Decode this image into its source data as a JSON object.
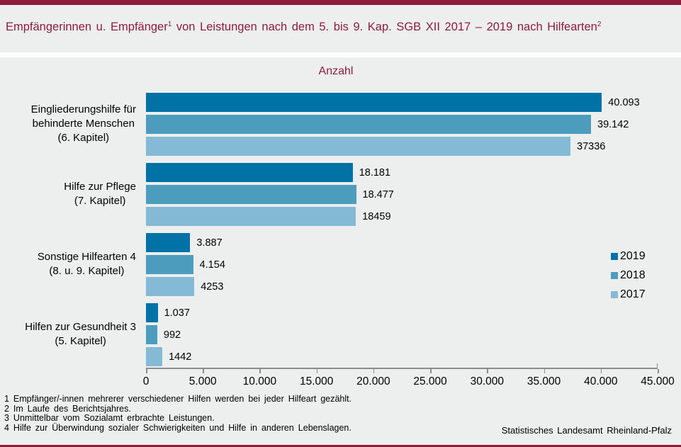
{
  "header": {
    "title_part1": "Empfängerinnen u. Empfänger",
    "title_sup1": "1",
    "title_part2": " von Leistungen nach dem 5. bis 9. Kap. SGB XII 2017 – 2019 nach Hilfearten",
    "title_sup2": "2"
  },
  "colors": {
    "accent_red": "#8C1C3C",
    "page_bg": "#EDEFEE",
    "axis_grey": "#8C8C8C",
    "bar_2019": "#0072A5",
    "bar_2018": "#4C9CBD",
    "bar_2017": "#84BAD6"
  },
  "chart_data": {
    "type": "bar",
    "orientation": "horizontal",
    "axis_title": "Anzahl",
    "categories": [
      {
        "name": "Eingliederungshilfe für behinderte Menschen (6. Kapitel)",
        "lines": [
          "Eingliederungshilfe für",
          "behinderte Menschen",
          "(6. Kapitel)"
        ]
      },
      {
        "name": "Hilfe zur Pflege (7. Kapitel)",
        "lines": [
          "Hilfe zur Pflege",
          "(7. Kapitel)"
        ]
      },
      {
        "name": "Sonstige Hilfearten 4 (8. u. 9. Kapitel)",
        "lines": [
          "Sonstige Hilfearten 4",
          "(8. u. 9. Kapitel)"
        ]
      },
      {
        "name": "Hilfen zur Gesundheit 3 (5. Kapitel)",
        "lines": [
          "Hilfen zur Gesundheit 3",
          "(5. Kapitel)"
        ]
      }
    ],
    "series": [
      {
        "name": "2019",
        "color": "#0072A5",
        "values": [
          40093,
          18181,
          3887,
          1037
        ],
        "labels": [
          "40.093",
          "18.181",
          "3.887",
          "1.037"
        ]
      },
      {
        "name": "2018",
        "color": "#4C9CBD",
        "values": [
          39142,
          18477,
          4154,
          992
        ],
        "labels": [
          "39.142",
          "18.477",
          "4.154",
          "992"
        ]
      },
      {
        "name": "2017",
        "color": "#84BAD6",
        "values": [
          37336,
          18459,
          4253,
          1442
        ],
        "labels": [
          "37336",
          "18459",
          "4253",
          "1442"
        ]
      }
    ],
    "x_axis": {
      "min": 0,
      "max": 45000,
      "tick_interval": 5000,
      "tick_labels": [
        "0",
        "5.000",
        "10.000",
        "15.000",
        "20.000",
        "25.000",
        "30.000",
        "35.000",
        "40.000",
        "45.000"
      ]
    },
    "legend": {
      "position": "right",
      "entries": [
        "2019",
        "2018",
        "2017"
      ]
    },
    "grid": false
  },
  "footnotes": [
    "1 Empfänger/-innen mehrerer verschiedener Hilfen werden bei jeder Hilfeart gezählt.",
    "2 Im Laufe des Berichtsjahres.",
    "3 Unmittelbar vom Sozialamt erbrachte Leistungen.",
    "4 Hilfe zur Überwindung sozialer Schwierigkeiten und Hilfe in anderen Lebenslagen."
  ],
  "source": "Statistisches Landesamt Rheinland-Pfalz"
}
